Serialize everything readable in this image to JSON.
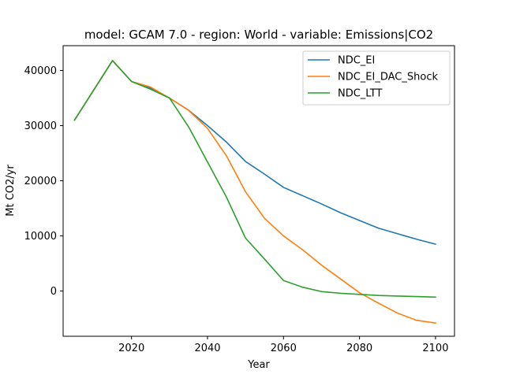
{
  "chart_data": {
    "type": "line",
    "title": "model: GCAM 7.0 - region: World - variable: Emissions|CO2",
    "xlabel": "Year",
    "ylabel": "Mt CO2/yr",
    "xlim": [
      2002,
      2105
    ],
    "ylim": [
      -8200,
      44500
    ],
    "xticks": [
      2020,
      2040,
      2060,
      2080,
      2100
    ],
    "yticks": [
      0,
      10000,
      20000,
      30000,
      40000
    ],
    "grid": false,
    "legend_position": "top-right",
    "series": [
      {
        "name": "NDC_EI",
        "color": "#1f77b4",
        "x": [
          2005,
          2015,
          2020,
          2025,
          2030,
          2035,
          2040,
          2045,
          2050,
          2055,
          2060,
          2065,
          2070,
          2075,
          2080,
          2085,
          2090,
          2095,
          2100
        ],
        "y": [
          31000,
          41800,
          38000,
          36800,
          35000,
          32800,
          30000,
          27000,
          23500,
          21200,
          18800,
          17300,
          15800,
          14200,
          12800,
          11400,
          10400,
          9400,
          8500
        ]
      },
      {
        "name": "NDC_EI_DAC_Shock",
        "color": "#ff7f0e",
        "x": [
          2005,
          2015,
          2020,
          2025,
          2030,
          2035,
          2040,
          2045,
          2050,
          2055,
          2060,
          2065,
          2070,
          2075,
          2080,
          2085,
          2090,
          2095,
          2100
        ],
        "y": [
          31000,
          41800,
          38000,
          37000,
          35000,
          32800,
          29500,
          24500,
          18000,
          13200,
          10000,
          7500,
          4700,
          2200,
          -300,
          -2200,
          -4000,
          -5300,
          -5800
        ]
      },
      {
        "name": "NDC_LTT",
        "color": "#2ca02c",
        "x": [
          2005,
          2015,
          2020,
          2025,
          2030,
          2035,
          2040,
          2045,
          2050,
          2055,
          2060,
          2065,
          2070,
          2075,
          2080,
          2085,
          2090,
          2095,
          2100
        ],
        "y": [
          31000,
          41800,
          38000,
          36600,
          35000,
          29800,
          23400,
          17000,
          9600,
          5800,
          1900,
          700,
          -100,
          -400,
          -600,
          -800,
          -900,
          -1000,
          -1100
        ]
      }
    ]
  }
}
